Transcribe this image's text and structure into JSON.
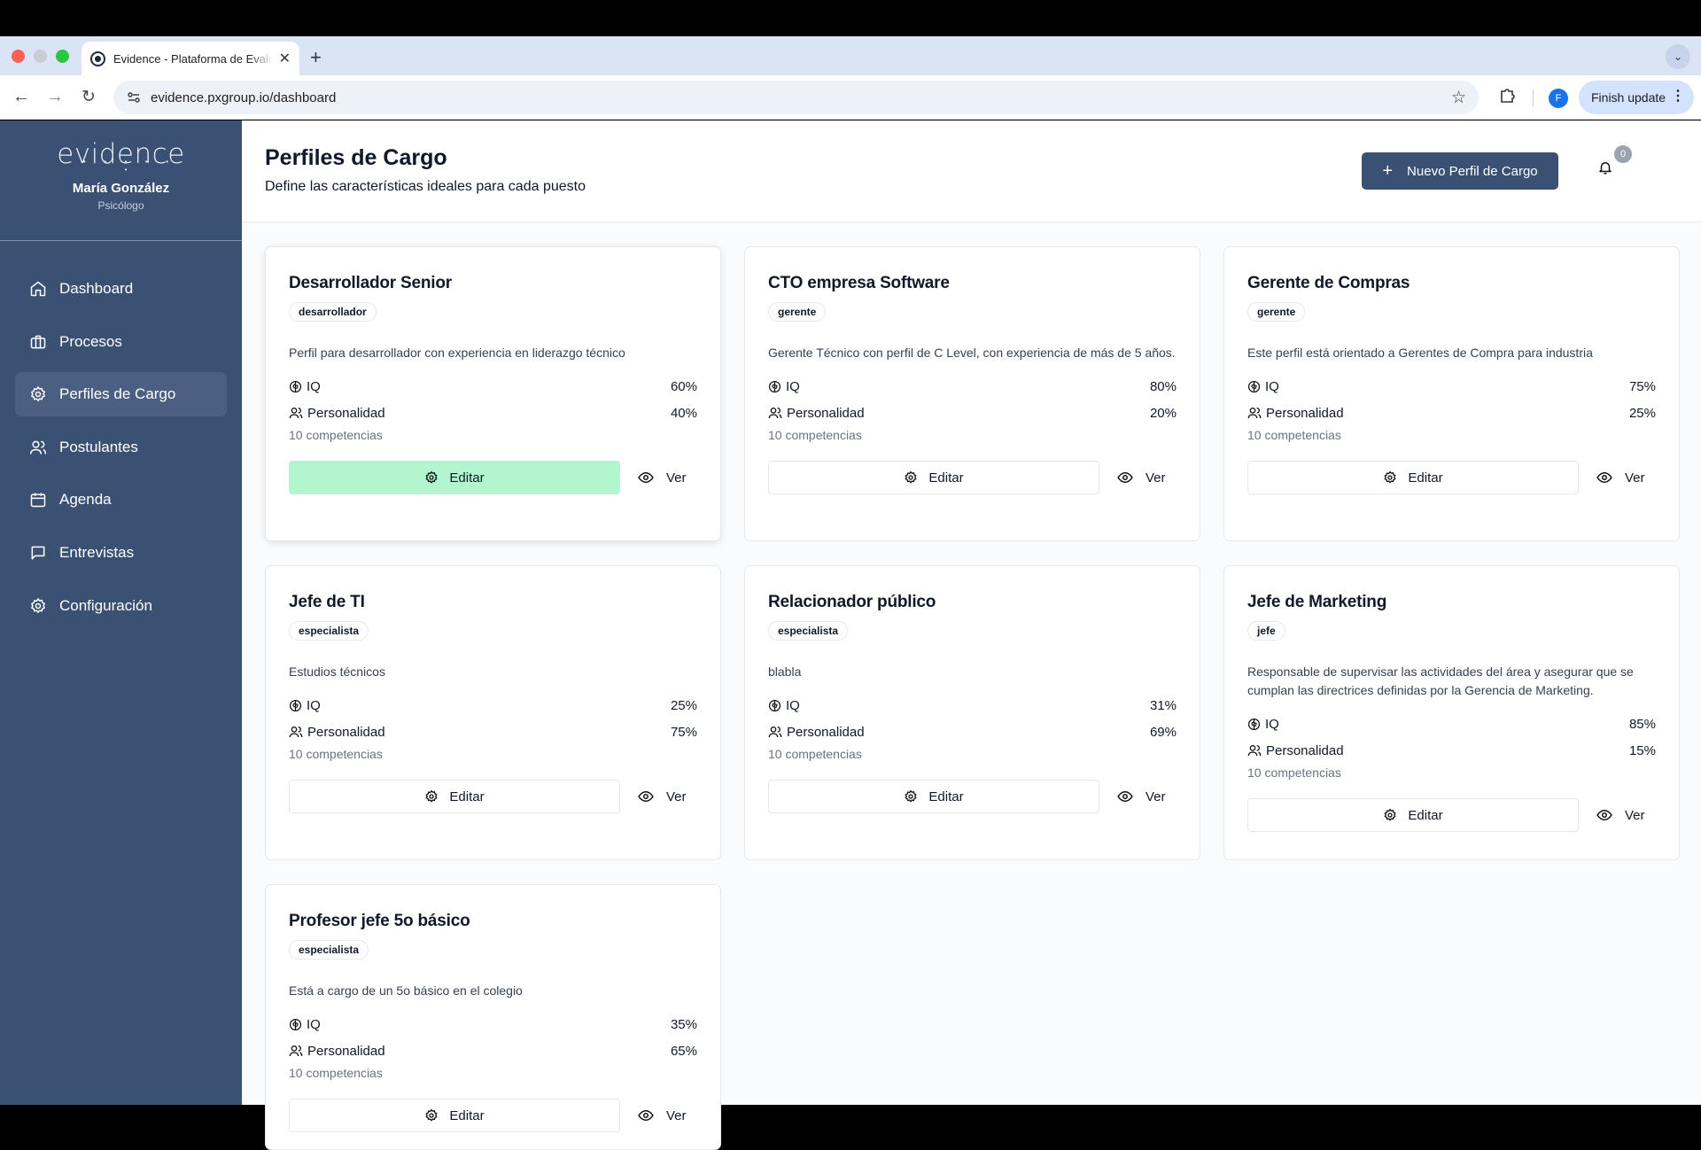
{
  "browser": {
    "tab_title": "Evidence - Plataforma de Evaluación",
    "url": "evidence.pxgroup.io/dashboard",
    "profile_initial": "F",
    "finish_update": "Finish update"
  },
  "sidebar": {
    "logo": "evidence",
    "user_name": "María González",
    "user_role": "Psicólogo",
    "items": [
      {
        "label": "Dashboard",
        "icon": "home-icon"
      },
      {
        "label": "Procesos",
        "icon": "briefcase-icon"
      },
      {
        "label": "Perfiles de Cargo",
        "icon": "gear-icon",
        "active": true
      },
      {
        "label": "Postulantes",
        "icon": "users-icon"
      },
      {
        "label": "Agenda",
        "icon": "calendar-icon"
      },
      {
        "label": "Entrevistas",
        "icon": "chat-icon"
      },
      {
        "label": "Configuración",
        "icon": "gear-icon"
      }
    ]
  },
  "header": {
    "title": "Perfiles de Cargo",
    "subtitle": "Define las características ideales para cada puesto",
    "new_button": "Nuevo Perfil de Cargo",
    "notification_count": "0"
  },
  "labels": {
    "iq": "IQ",
    "personality": "Personalidad",
    "edit": "Editar",
    "view": "Ver"
  },
  "profiles": [
    {
      "title": "Desarrollador Senior",
      "tag": "desarrollador",
      "description": "Perfil para desarrollador con experiencia en liderazgo técnico",
      "iq": "60%",
      "personality": "40%",
      "competencies": "10 competencias"
    },
    {
      "title": "CTO empresa Software",
      "tag": "gerente",
      "description": "Gerente Técnico con perfil de C Level, con experiencia de más de 5 años.",
      "iq": "80%",
      "personality": "20%",
      "competencies": "10 competencias"
    },
    {
      "title": "Gerente de Compras",
      "tag": "gerente",
      "description": "Este perfil está orientado a Gerentes de Compra para industria",
      "iq": "75%",
      "personality": "25%",
      "competencies": "10 competencias"
    },
    {
      "title": "Jefe de TI",
      "tag": "especialista",
      "description": "Estudios técnicos",
      "iq": "25%",
      "personality": "75%",
      "competencies": "10 competencias"
    },
    {
      "title": "Relacionador público",
      "tag": "especialista",
      "description": "blabla",
      "iq": "31%",
      "personality": "69%",
      "competencies": "10 competencias"
    },
    {
      "title": "Jefe de Marketing",
      "tag": "jefe",
      "description": "Responsable de supervisar las actividades del área y asegurar que se cumplan las directrices definidas por la Gerencia de Marketing.",
      "iq": "85%",
      "personality": "15%",
      "competencies": "10 competencias"
    },
    {
      "title": "Profesor jefe 5o básico",
      "tag": "especialista",
      "description": "Está a cargo de un 5o básico en el colegio",
      "iq": "35%",
      "personality": "65%",
      "competencies": "10 competencias"
    }
  ]
}
